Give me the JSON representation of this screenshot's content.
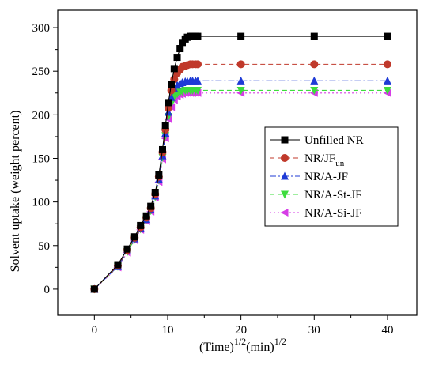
{
  "chart_data": {
    "type": "line",
    "xlabel": "(Time)",
    "xlabel_sup1": "1/2",
    "xlabel_unit": "(min)",
    "xlabel_sup2": "1/2",
    "ylabel": "Solvent uptake (weight percent)",
    "xlim": [
      -5,
      44
    ],
    "ylim": [
      -30,
      320
    ],
    "xticks": [
      0,
      10,
      20,
      30,
      40
    ],
    "yticks": [
      0,
      50,
      100,
      150,
      200,
      250,
      300
    ],
    "grid": false,
    "legend_position": "center-right",
    "x": [
      0,
      3.2,
      4.5,
      5.5,
      6.3,
      7.1,
      7.7,
      8.3,
      8.8,
      9.3,
      9.7,
      10.1,
      10.5,
      10.9,
      11.3,
      11.7,
      12.0,
      12.4,
      12.7,
      13.1,
      13.4,
      13.8,
      14.1,
      20,
      30,
      40
    ],
    "series": [
      {
        "name": "Unfilled NR",
        "name_sub": "",
        "marker": "square",
        "line": "solid",
        "color": "#000000",
        "values": [
          0,
          28,
          46,
          60,
          73,
          84,
          95,
          111,
          131,
          160,
          188,
          214,
          235,
          253,
          266,
          276,
          283,
          287,
          289,
          290,
          290,
          290,
          290,
          290,
          290,
          290
        ]
      },
      {
        "name": "NR/JF",
        "name_sub": "un",
        "marker": "circle",
        "line": "dashed",
        "color": "#c0392b",
        "values": [
          0,
          27,
          45,
          59,
          71,
          82,
          93,
          109,
          129,
          157,
          183,
          208,
          228,
          241,
          248,
          252,
          255,
          256,
          257,
          258,
          258,
          258,
          258,
          258,
          258,
          258
        ]
      },
      {
        "name": "NR/A-JF",
        "name_sub": "",
        "marker": "triangle-up",
        "line": "dashdot",
        "color": "#1f3bd6",
        "values": [
          0,
          26,
          44,
          58,
          70,
          80,
          91,
          107,
          126,
          153,
          179,
          203,
          220,
          230,
          234,
          236,
          237,
          238,
          238,
          239,
          239,
          239,
          239,
          239,
          239,
          239
        ]
      },
      {
        "name": "NR/A-St-JF",
        "name_sub": "",
        "marker": "triangle-down",
        "line": "dashed",
        "color": "#3ddc3d",
        "values": [
          0,
          26,
          43,
          57,
          69,
          80,
          90,
          106,
          125,
          151,
          176,
          198,
          213,
          221,
          224,
          226,
          227,
          228,
          228,
          228,
          228,
          228,
          228,
          228,
          228,
          228
        ]
      },
      {
        "name": "NR/A-Si-JF",
        "name_sub": "",
        "marker": "triangle-left",
        "line": "dotted",
        "color": "#d63ce6",
        "values": [
          0,
          25,
          42,
          56,
          68,
          78,
          89,
          105,
          123,
          149,
          173,
          195,
          209,
          217,
          221,
          223,
          224,
          225,
          225,
          225,
          225,
          225,
          225,
          225,
          225,
          225
        ]
      }
    ]
  }
}
